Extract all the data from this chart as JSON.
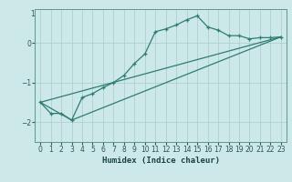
{
  "title": "",
  "xlabel": "Humidex (Indice chaleur)",
  "ylabel": "",
  "background_color": "#cce8e8",
  "grid_color": "#aacccc",
  "line_color": "#2e7d6e",
  "xlim": [
    -0.5,
    23.5
  ],
  "ylim": [
    -2.5,
    0.85
  ],
  "yticks": [
    -2,
    -1,
    0
  ],
  "ytop_label": "1",
  "xticks": [
    0,
    1,
    2,
    3,
    4,
    5,
    6,
    7,
    8,
    9,
    10,
    11,
    12,
    13,
    14,
    15,
    16,
    17,
    18,
    19,
    20,
    21,
    22,
    23
  ],
  "line1_x": [
    0,
    1,
    2,
    3,
    4,
    5,
    6,
    7,
    8,
    9,
    10,
    11,
    12,
    13,
    14,
    15,
    16,
    17,
    18,
    19,
    20,
    21,
    22,
    23
  ],
  "line1_y": [
    -1.5,
    -1.78,
    -1.78,
    -1.95,
    -1.38,
    -1.28,
    -1.13,
    -1.0,
    -0.82,
    -0.52,
    -0.28,
    0.28,
    0.35,
    0.45,
    0.58,
    0.68,
    0.4,
    0.32,
    0.18,
    0.18,
    0.1,
    0.13,
    0.13,
    0.15
  ],
  "line2_x": [
    0,
    3,
    23
  ],
  "line2_y": [
    -1.5,
    -1.95,
    0.15
  ],
  "line3_x": [
    0,
    23
  ],
  "line3_y": [
    -1.5,
    0.15
  ]
}
